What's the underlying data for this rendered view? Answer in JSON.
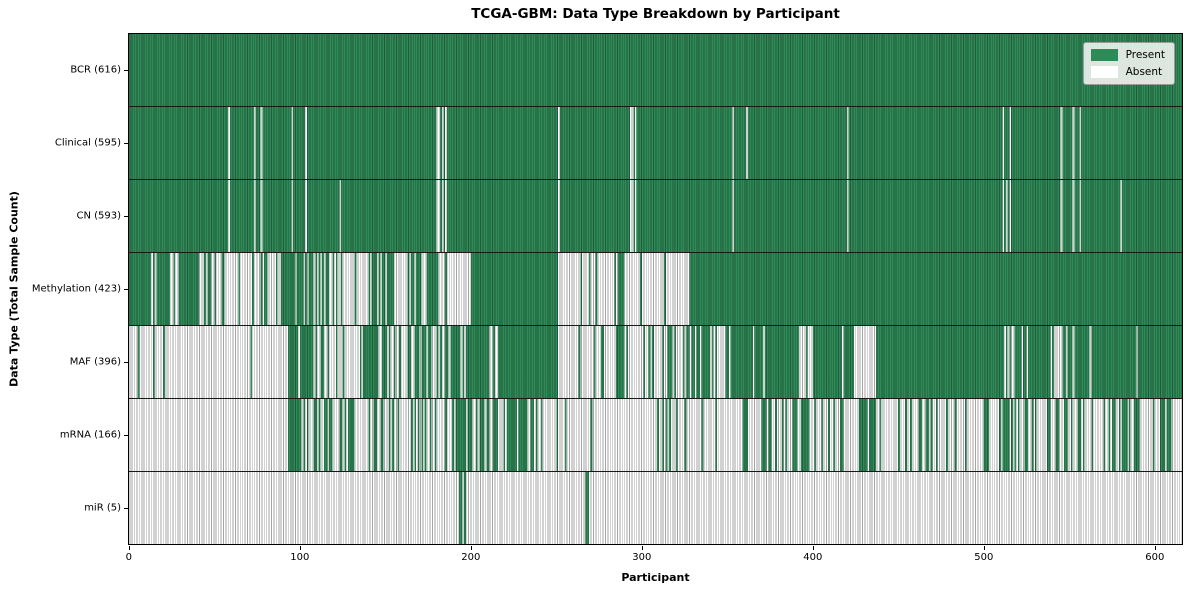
{
  "style": {
    "present_color": "#2e8a57",
    "absent_color": "#ffffff",
    "grid_overlay": "rgba(15,15,15,0.38)",
    "legend_bg": "#ecf0ec",
    "axis_color": "#000000"
  },
  "legend": {
    "present_label": "Present",
    "absent_label": "Absent"
  },
  "chart_data": {
    "type": "heatmap",
    "title": "TCGA-GBM: Data Type Breakdown by Participant",
    "xlabel": "Participant",
    "ylabel": "Data Type (Total Sample Count)",
    "x_ticks": [
      0,
      100,
      200,
      300,
      400,
      500,
      600
    ],
    "x_range": [
      0,
      616
    ],
    "n_participants": 616,
    "grid": false,
    "legend_position": "upper-right",
    "legend_entries": [
      "Present",
      "Absent"
    ],
    "rows": [
      {
        "name": "BCR",
        "label": "BCR (616)",
        "present_count": 616,
        "segments": [
          [
            0,
            616,
            1.0
          ]
        ]
      },
      {
        "name": "Clinical",
        "label": "Clinical (595)",
        "present_count": 595,
        "segments": [
          [
            0,
            616,
            1.0
          ]
        ],
        "absent_at": [
          58,
          73,
          77,
          95,
          103,
          180,
          181,
          183,
          185,
          251,
          293,
          294,
          296,
          353,
          361,
          420,
          511,
          515,
          545,
          552,
          556
        ]
      },
      {
        "name": "CN",
        "label": "CN (593)",
        "present_count": 593,
        "segments": [
          [
            0,
            616,
            1.0
          ]
        ],
        "absent_at": [
          58,
          73,
          77,
          95,
          103,
          123,
          180,
          181,
          183,
          185,
          251,
          293,
          294,
          296,
          353,
          420,
          511,
          513,
          515,
          545,
          552,
          556,
          580
        ]
      },
      {
        "name": "Methylation",
        "label": "Methylation (423)",
        "present_count": 423,
        "segments": [
          [
            0,
            55,
            0.73
          ],
          [
            55,
            90,
            0.13
          ],
          [
            90,
            110,
            0.8
          ],
          [
            110,
            125,
            0.45
          ],
          [
            125,
            140,
            0.15
          ],
          [
            140,
            155,
            0.5
          ],
          [
            155,
            165,
            0.05
          ],
          [
            165,
            180,
            0.6
          ],
          [
            180,
            200,
            0.1
          ],
          [
            200,
            251,
            1.0
          ],
          [
            251,
            284,
            0.08
          ],
          [
            284,
            290,
            0.85
          ],
          [
            290,
            328,
            0.07
          ],
          [
            328,
            616,
            0.985
          ]
        ]
      },
      {
        "name": "MAF",
        "label": "MAF (396)",
        "present_count": 396,
        "segments": [
          [
            0,
            30,
            0.1
          ],
          [
            30,
            93,
            0.02
          ],
          [
            93,
            114,
            0.75
          ],
          [
            114,
            126,
            0.5
          ],
          [
            126,
            134,
            0.12
          ],
          [
            134,
            154,
            0.75
          ],
          [
            154,
            163,
            0.1
          ],
          [
            163,
            177,
            0.8
          ],
          [
            177,
            182,
            0.2
          ],
          [
            182,
            212,
            0.8
          ],
          [
            212,
            216,
            0.25
          ],
          [
            216,
            251,
            0.97
          ],
          [
            251,
            284,
            0.12
          ],
          [
            284,
            290,
            0.8
          ],
          [
            290,
            310,
            0.1
          ],
          [
            310,
            313,
            0.9
          ],
          [
            313,
            332,
            0.55
          ],
          [
            332,
            340,
            0.9
          ],
          [
            340,
            350,
            0.4
          ],
          [
            350,
            390,
            0.95
          ],
          [
            390,
            400,
            0.4
          ],
          [
            400,
            424,
            0.85
          ],
          [
            424,
            438,
            0.15
          ],
          [
            438,
            514,
            0.97
          ],
          [
            514,
            518,
            0.3
          ],
          [
            518,
            540,
            0.9
          ],
          [
            540,
            545,
            0.3
          ],
          [
            545,
            554,
            0.8
          ],
          [
            554,
            616,
            0.97
          ]
        ]
      },
      {
        "name": "mRNA",
        "label": "mRNA (166)",
        "present_count": 166,
        "segments": [
          [
            0,
            24,
            0.04
          ],
          [
            24,
            33,
            0.3
          ],
          [
            33,
            93,
            0.0
          ],
          [
            93,
            105,
            0.8
          ],
          [
            105,
            126,
            0.5
          ],
          [
            126,
            132,
            0.8
          ],
          [
            132,
            142,
            0.2
          ],
          [
            142,
            158,
            0.55
          ],
          [
            158,
            164,
            0.1
          ],
          [
            164,
            174,
            0.5
          ],
          [
            174,
            188,
            0.15
          ],
          [
            188,
            210,
            0.7
          ],
          [
            210,
            218,
            0.4
          ],
          [
            218,
            242,
            0.75
          ],
          [
            242,
            287,
            0.05
          ],
          [
            287,
            311,
            0.08
          ],
          [
            311,
            370,
            0.15
          ],
          [
            370,
            400,
            0.5
          ],
          [
            400,
            440,
            0.35
          ],
          [
            440,
            460,
            0.15
          ],
          [
            460,
            480,
            0.45
          ],
          [
            480,
            497,
            0.08
          ],
          [
            497,
            530,
            0.55
          ],
          [
            530,
            590,
            0.3
          ],
          [
            590,
            602,
            0.1
          ],
          [
            602,
            610,
            0.6
          ],
          [
            610,
            616,
            0.0
          ]
        ]
      },
      {
        "name": "miR",
        "label": "miR (5)",
        "present_count": 5,
        "segments": [
          [
            0,
            616,
            0.0
          ]
        ],
        "present_at": [
          193,
          194,
          196,
          267,
          268
        ]
      }
    ]
  }
}
